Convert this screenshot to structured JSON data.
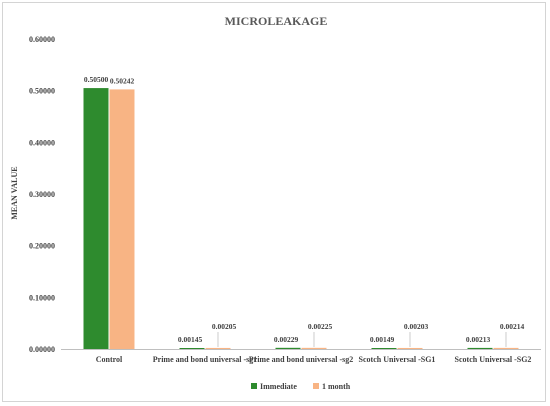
{
  "chart_data": {
    "type": "bar",
    "title": "MICROLEAKAGE",
    "xlabel": "",
    "ylabel": "MEAN VALUE",
    "ylim": [
      0,
      0.6
    ],
    "yticks": [
      "0.00000",
      "0.10000",
      "0.20000",
      "0.30000",
      "0.40000",
      "0.50000",
      "0.60000"
    ],
    "categories": [
      "Control",
      "Prime and bond universal -sg1",
      "Prime and bond universal -sg2",
      "Scotch Universal -SG1",
      "Scotch Universal -SG2"
    ],
    "series": [
      {
        "name": "Immediate",
        "color": "#2e8b2e",
        "values": [
          0.505,
          0.00145,
          0.00229,
          0.00149,
          0.00213
        ],
        "labels": [
          "0.50500",
          "0.00145",
          "0.00229",
          "0.00149",
          "0.00213"
        ]
      },
      {
        "name": "1 month",
        "color": "#f8b484",
        "values": [
          0.50242,
          0.00205,
          0.00225,
          0.00203,
          0.00214
        ],
        "labels": [
          "0.50242",
          "0.00205",
          "0.00225",
          "0.00203",
          "0.00214"
        ]
      }
    ],
    "grid": false,
    "legend_position": "bottom"
  }
}
